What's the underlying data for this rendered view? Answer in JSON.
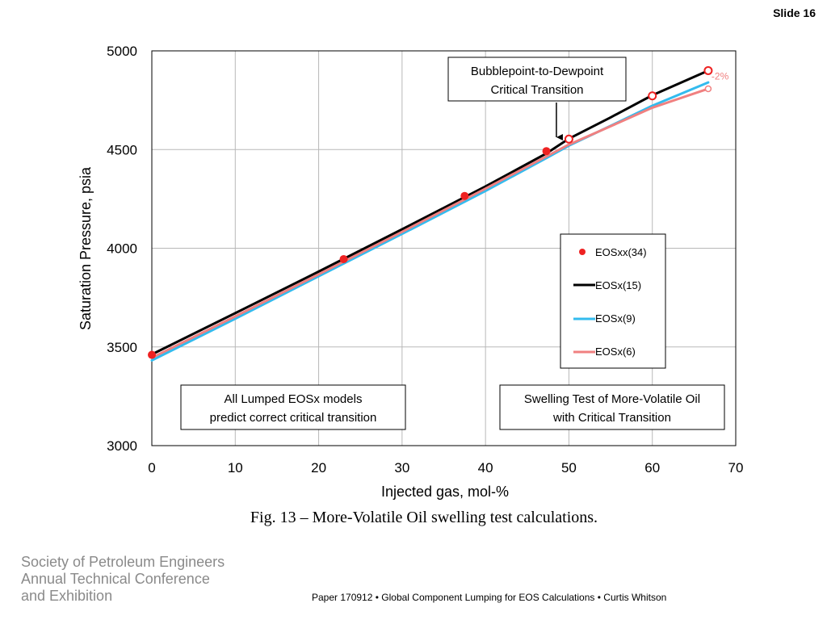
{
  "slide": {
    "number_label": "Slide 16"
  },
  "chart_data": {
    "type": "line",
    "xlabel": "Injected gas, mol-%",
    "ylabel": "Saturation Pressure, psia",
    "xlim": [
      0,
      70
    ],
    "ylim": [
      3000,
      5000
    ],
    "x_ticks": [
      0,
      10,
      20,
      30,
      40,
      50,
      60,
      70
    ],
    "y_ticks": [
      3000,
      3500,
      4000,
      4500,
      5000
    ],
    "grid": true,
    "legend_position": "center-right",
    "series": [
      {
        "name": "EOSxx(34)",
        "kind": "markers",
        "color": "#ee2222",
        "x": [
          0,
          23,
          37.5,
          47.3,
          50,
          60,
          66.7
        ],
        "y": [
          3460,
          3945,
          4265,
          4492,
          4553,
          4772,
          4900
        ],
        "hollow": [
          false,
          false,
          false,
          false,
          true,
          true,
          true
        ]
      },
      {
        "name": "EOSx(15)",
        "kind": "line",
        "color": "#000000",
        "x": [
          0,
          10,
          20,
          30,
          40,
          47.3,
          50,
          55,
          60,
          66.7
        ],
        "y": [
          3462,
          3671,
          3882,
          4096,
          4313,
          4480,
          4555,
          4663,
          4775,
          4900
        ]
      },
      {
        "name": "EOSx(9)",
        "kind": "line",
        "color": "#33bbee",
        "x": [
          0,
          10,
          20,
          30,
          40,
          47.3,
          50,
          55,
          60,
          66.7
        ],
        "y": [
          3432,
          3643,
          3858,
          4073,
          4290,
          4457,
          4520,
          4620,
          4722,
          4840
        ]
      },
      {
        "name": "EOSx(6)",
        "kind": "line",
        "color": "#f08080",
        "x": [
          0,
          10,
          20,
          30,
          40,
          47.3,
          50,
          55,
          60,
          66.7
        ],
        "y": [
          3445,
          3655,
          3868,
          4083,
          4302,
          4465,
          4525,
          4618,
          4712,
          4808
        ]
      }
    ],
    "annotations": {
      "transition": {
        "lines": [
          "Bubblepoint-to-Dewpoint",
          "Critical Transition"
        ],
        "arrow_x": 48.5
      },
      "lumped": {
        "lines": [
          "All Lumped EOSx models",
          "predict correct critical transition"
        ]
      },
      "swelling": {
        "lines": [
          "Swelling Test of More-Volatile Oil",
          "with Critical Transition"
        ]
      },
      "deviation_label": "-2%"
    },
    "caption": "Fig. 13 – More-Volatile Oil swelling test calculations."
  },
  "footer": {
    "society_lines": [
      "Society of Petroleum Engineers",
      "Annual Technical Conference",
      "and Exhibition"
    ],
    "paper": "Paper 170912 • Global Component Lumping for EOS Calculations • Curtis Whitson"
  }
}
